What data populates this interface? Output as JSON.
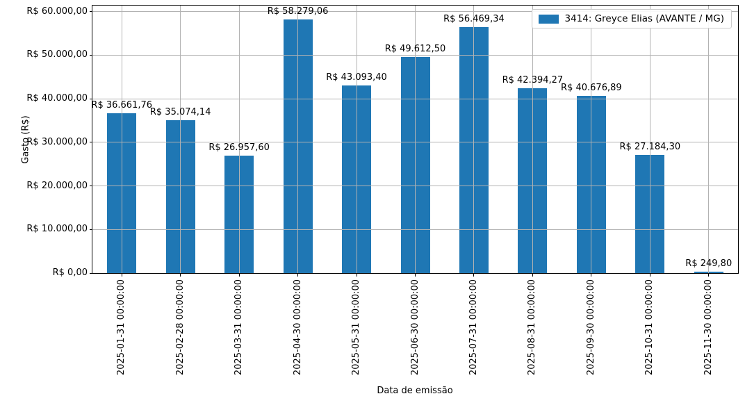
{
  "chart_data": {
    "type": "bar",
    "title": "",
    "xlabel": "Data de emissão",
    "ylabel": "Gasto (R$)",
    "categories": [
      "2025-01-31 00:00:00",
      "2025-02-28 00:00:00",
      "2025-03-31 00:00:00",
      "2025-04-30 00:00:00",
      "2025-05-31 00:00:00",
      "2025-06-30 00:00:00",
      "2025-07-31 00:00:00",
      "2025-08-31 00:00:00",
      "2025-09-30 00:00:00",
      "2025-10-31 00:00:00",
      "2025-11-30 00:00:00"
    ],
    "values": [
      36661.76,
      35074.14,
      26957.6,
      58279.06,
      43093.4,
      49612.5,
      56469.34,
      42394.27,
      40676.89,
      27184.3,
      249.8
    ],
    "bar_labels": [
      "R$ 36.661,76",
      "R$ 35.074,14",
      "R$ 26.957,60",
      "R$ 58.279,06",
      "R$ 43.093,40",
      "R$ 49.612,50",
      "R$ 56.469,34",
      "R$ 42.394,27",
      "R$ 40.676,89",
      "R$ 27.184,30",
      "R$ 249,80"
    ],
    "y_ticks": [
      {
        "value": 0,
        "label": "R$ 0,00"
      },
      {
        "value": 10000,
        "label": "R$ 10.000,00"
      },
      {
        "value": 20000,
        "label": "R$ 20.000,00"
      },
      {
        "value": 30000,
        "label": "R$ 30.000,00"
      },
      {
        "value": 40000,
        "label": "R$ 40.000,00"
      },
      {
        "value": 50000,
        "label": "R$ 50.000,00"
      },
      {
        "value": 60000,
        "label": "R$ 60.000,00"
      }
    ],
    "ylim": [
      0,
      61400
    ],
    "grid": true,
    "grid_over_bars": true,
    "legend_position": "top-right",
    "legend_entries": [
      {
        "label": "3414: Greyce Elias (AVANTE / MG)",
        "color": "#1f77b4"
      }
    ],
    "colors": {
      "bar": "#1f77b4",
      "grid": "#b2b2b2",
      "spine": "#000000",
      "text": "#000000",
      "background": "#ffffff",
      "legend_border": "#cccccc"
    }
  }
}
